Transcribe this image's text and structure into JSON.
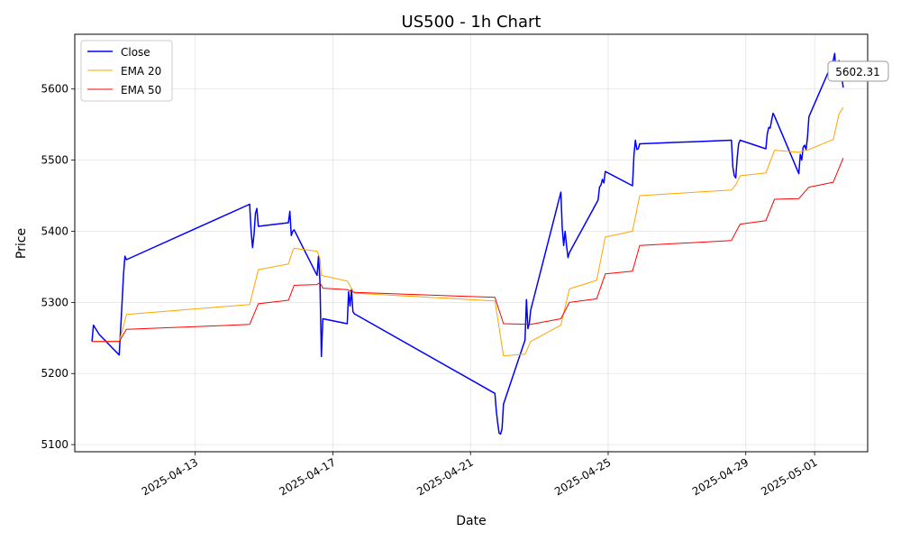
{
  "chart_data": {
    "type": "line",
    "title": "US500 - 1h Chart",
    "xlabel": "Date",
    "ylabel": "Price",
    "x_ticks": [
      "2025-04-13",
      "2025-04-17",
      "2025-04-21",
      "2025-04-25",
      "2025-04-29",
      "2025-05-01"
    ],
    "y_ticks": [
      5100,
      5200,
      5300,
      5400,
      5500,
      5600
    ],
    "xlim": [
      "2025-04-09T12:00",
      "2025-05-02T13:00"
    ],
    "ylim": [
      5090,
      5677
    ],
    "grid": true,
    "legend_position": "top-left",
    "annotation": "5602.31",
    "series": [
      {
        "name": "Close",
        "color": "#0000ff",
        "points": [
          [
            "2025-04-10T00:00",
            5245
          ],
          [
            "2025-04-10T01:00",
            5268
          ],
          [
            "2025-04-10T05:00",
            5255
          ],
          [
            "2025-04-10T19:00",
            5226
          ],
          [
            "2025-04-10T21:00",
            5300
          ],
          [
            "2025-04-10T22:00",
            5340
          ],
          [
            "2025-04-10T23:00",
            5365
          ],
          [
            "2025-04-11T00:00",
            5360
          ],
          [
            "2025-04-14T14:00",
            5438
          ],
          [
            "2025-04-14T15:00",
            5400
          ],
          [
            "2025-04-14T16:00",
            5377
          ],
          [
            "2025-04-14T17:00",
            5395
          ],
          [
            "2025-04-14T18:00",
            5425
          ],
          [
            "2025-04-14T19:00",
            5432
          ],
          [
            "2025-04-14T20:00",
            5407
          ],
          [
            "2025-04-15T17:00",
            5412
          ],
          [
            "2025-04-15T18:00",
            5428
          ],
          [
            "2025-04-15T19:00",
            5394
          ],
          [
            "2025-04-15T20:00",
            5400
          ],
          [
            "2025-04-15T21:00",
            5402
          ],
          [
            "2025-04-16T13:00",
            5338
          ],
          [
            "2025-04-16T14:00",
            5365
          ],
          [
            "2025-04-16T15:00",
            5330
          ],
          [
            "2025-04-16T16:00",
            5224
          ],
          [
            "2025-04-16T17:00",
            5277
          ],
          [
            "2025-04-17T10:00",
            5270
          ],
          [
            "2025-04-17T11:00",
            5315
          ],
          [
            "2025-04-17T12:00",
            5295
          ],
          [
            "2025-04-17T13:00",
            5318
          ],
          [
            "2025-04-17T14:00",
            5287
          ],
          [
            "2025-04-17T15:00",
            5284
          ],
          [
            "2025-04-21T17:00",
            5172
          ],
          [
            "2025-04-21T18:00",
            5148
          ],
          [
            "2025-04-21T19:00",
            5130
          ],
          [
            "2025-04-21T20:00",
            5116
          ],
          [
            "2025-04-21T21:00",
            5115
          ],
          [
            "2025-04-21T22:00",
            5122
          ],
          [
            "2025-04-21T23:00",
            5157
          ],
          [
            "2025-04-22T14:00",
            5247
          ],
          [
            "2025-04-22T15:00",
            5304
          ],
          [
            "2025-04-22T16:00",
            5263
          ],
          [
            "2025-04-22T17:00",
            5270
          ],
          [
            "2025-04-22T18:00",
            5289
          ],
          [
            "2025-04-23T15:00",
            5455
          ],
          [
            "2025-04-23T16:00",
            5405
          ],
          [
            "2025-04-23T17:00",
            5380
          ],
          [
            "2025-04-23T18:00",
            5400
          ],
          [
            "2025-04-23T19:00",
            5380
          ],
          [
            "2025-04-23T20:00",
            5363
          ],
          [
            "2025-04-23T21:00",
            5370
          ],
          [
            "2025-04-24T16:00",
            5440
          ],
          [
            "2025-04-24T17:00",
            5444
          ],
          [
            "2025-04-24T18:00",
            5462
          ],
          [
            "2025-04-24T19:00",
            5465
          ],
          [
            "2025-04-24T20:00",
            5473
          ],
          [
            "2025-04-24T21:00",
            5468
          ],
          [
            "2025-04-24T22:00",
            5484
          ],
          [
            "2025-04-25T17:00",
            5464
          ],
          [
            "2025-04-25T18:00",
            5507
          ],
          [
            "2025-04-25T19:00",
            5528
          ],
          [
            "2025-04-25T20:00",
            5515
          ],
          [
            "2025-04-25T21:00",
            5516
          ],
          [
            "2025-04-25T22:00",
            5523
          ],
          [
            "2025-04-28T14:00",
            5528
          ],
          [
            "2025-04-28T15:00",
            5490
          ],
          [
            "2025-04-28T16:00",
            5478
          ],
          [
            "2025-04-28T17:00",
            5475
          ],
          [
            "2025-04-28T18:00",
            5503
          ],
          [
            "2025-04-28T19:00",
            5523
          ],
          [
            "2025-04-28T20:00",
            5528
          ],
          [
            "2025-04-29T14:00",
            5516
          ],
          [
            "2025-04-29T15:00",
            5537
          ],
          [
            "2025-04-29T16:00",
            5546
          ],
          [
            "2025-04-29T17:00",
            5545
          ],
          [
            "2025-04-29T18:00",
            5556
          ],
          [
            "2025-04-29T19:00",
            5566
          ],
          [
            "2025-04-29T20:00",
            5562
          ],
          [
            "2025-04-30T13:00",
            5481
          ],
          [
            "2025-04-30T14:00",
            5508
          ],
          [
            "2025-04-30T15:00",
            5500
          ],
          [
            "2025-04-30T16:00",
            5518
          ],
          [
            "2025-04-30T17:00",
            5521
          ],
          [
            "2025-04-30T18:00",
            5515
          ],
          [
            "2025-04-30T19:00",
            5532
          ],
          [
            "2025-04-30T20:00",
            5561
          ],
          [
            "2025-05-01T13:00",
            5640
          ],
          [
            "2025-05-01T14:00",
            5650
          ],
          [
            "2025-05-01T15:00",
            5620
          ],
          [
            "2025-05-01T16:00",
            5625
          ],
          [
            "2025-05-01T17:00",
            5640
          ],
          [
            "2025-05-01T18:00",
            5628
          ],
          [
            "2025-05-01T19:00",
            5615
          ],
          [
            "2025-05-01T20:00",
            5602
          ]
        ]
      },
      {
        "name": "EMA 20",
        "color": "#ffa500",
        "points": [
          [
            "2025-04-10T00:00",
            5245
          ],
          [
            "2025-04-10T19:00",
            5245
          ],
          [
            "2025-04-10T23:00",
            5274
          ],
          [
            "2025-04-11T00:00",
            5283
          ],
          [
            "2025-04-14T14:00",
            5297
          ],
          [
            "2025-04-14T20:00",
            5346
          ],
          [
            "2025-04-15T17:00",
            5354
          ],
          [
            "2025-04-15T20:00",
            5373
          ],
          [
            "2025-04-15T21:00",
            5376
          ],
          [
            "2025-04-16T13:00",
            5372
          ],
          [
            "2025-04-16T15:00",
            5362
          ],
          [
            "2025-04-16T16:00",
            5338
          ],
          [
            "2025-04-17T10:00",
            5330
          ],
          [
            "2025-04-17T15:00",
            5313
          ],
          [
            "2025-04-21T17:00",
            5302
          ],
          [
            "2025-04-21T23:00",
            5225
          ],
          [
            "2025-04-22T14:00",
            5227
          ],
          [
            "2025-04-22T18:00",
            5245
          ],
          [
            "2025-04-23T15:00",
            5268
          ],
          [
            "2025-04-23T21:00",
            5319
          ],
          [
            "2025-04-24T16:00",
            5331
          ],
          [
            "2025-04-24T22:00",
            5392
          ],
          [
            "2025-04-25T17:00",
            5400
          ],
          [
            "2025-04-25T22:00",
            5450
          ],
          [
            "2025-04-28T14:00",
            5458
          ],
          [
            "2025-04-28T17:00",
            5465
          ],
          [
            "2025-04-28T20:00",
            5478
          ],
          [
            "2025-04-29T14:00",
            5482
          ],
          [
            "2025-04-29T20:00",
            5514
          ],
          [
            "2025-04-30T13:00",
            5511
          ],
          [
            "2025-04-30T20:00",
            5515
          ],
          [
            "2025-05-01T13:00",
            5529
          ],
          [
            "2025-05-01T17:00",
            5565
          ],
          [
            "2025-05-01T20:00",
            5574
          ]
        ]
      },
      {
        "name": "EMA 50",
        "color": "#ff0000",
        "points": [
          [
            "2025-04-10T00:00",
            5245
          ],
          [
            "2025-04-10T19:00",
            5245
          ],
          [
            "2025-04-11T00:00",
            5262
          ],
          [
            "2025-04-14T14:00",
            5269
          ],
          [
            "2025-04-14T20:00",
            5298
          ],
          [
            "2025-04-15T17:00",
            5303
          ],
          [
            "2025-04-15T21:00",
            5324
          ],
          [
            "2025-04-16T13:00",
            5325
          ],
          [
            "2025-04-16T15:00",
            5328
          ],
          [
            "2025-04-16T17:00",
            5320
          ],
          [
            "2025-04-17T10:00",
            5318
          ],
          [
            "2025-04-17T15:00",
            5314
          ],
          [
            "2025-04-21T17:00",
            5307
          ],
          [
            "2025-04-21T23:00",
            5270
          ],
          [
            "2025-04-22T18:00",
            5269
          ],
          [
            "2025-04-23T15:00",
            5277
          ],
          [
            "2025-04-23T21:00",
            5300
          ],
          [
            "2025-04-24T16:00",
            5305
          ],
          [
            "2025-04-24T22:00",
            5340
          ],
          [
            "2025-04-25T17:00",
            5344
          ],
          [
            "2025-04-25T22:00",
            5380
          ],
          [
            "2025-04-28T14:00",
            5387
          ],
          [
            "2025-04-28T20:00",
            5410
          ],
          [
            "2025-04-29T14:00",
            5415
          ],
          [
            "2025-04-29T20:00",
            5445
          ],
          [
            "2025-04-30T13:00",
            5446
          ],
          [
            "2025-04-30T20:00",
            5462
          ],
          [
            "2025-05-01T13:00",
            5469
          ],
          [
            "2025-05-01T20:00",
            5503
          ]
        ]
      }
    ]
  }
}
